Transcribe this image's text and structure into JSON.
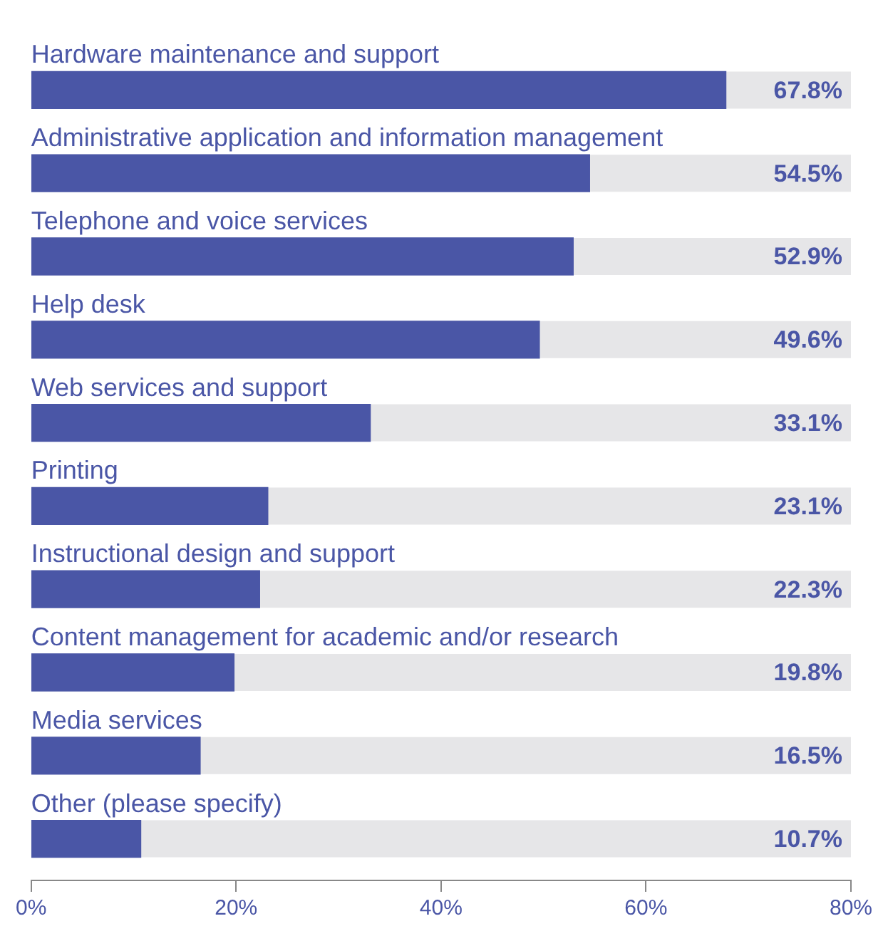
{
  "chart_data": {
    "type": "bar",
    "orientation": "horizontal",
    "categories": [
      "Hardware maintenance and support",
      "Administrative application and information management",
      "Telephone and voice services",
      "Help desk",
      "Web services and support",
      "Printing",
      "Instructional design and support",
      "Content management for academic and/or research",
      "Media services",
      "Other (please specify)"
    ],
    "values": [
      67.8,
      54.5,
      52.9,
      49.6,
      33.1,
      23.1,
      22.3,
      19.8,
      16.5,
      10.7
    ],
    "value_labels": [
      "67.8%",
      "54.5%",
      "52.9%",
      "49.6%",
      "33.1%",
      "23.1%",
      "22.3%",
      "19.8%",
      "16.5%",
      "10.7%"
    ],
    "color": "#4a56a6",
    "xlim": [
      0,
      80
    ],
    "xticks": [
      {
        "value": 0,
        "label": "0%"
      },
      {
        "value": 20,
        "label": "20%"
      },
      {
        "value": 40,
        "label": "40%"
      },
      {
        "value": 60,
        "label": "60%"
      },
      {
        "value": 80,
        "label": "80%"
      }
    ],
    "grid": false,
    "legend": false
  }
}
